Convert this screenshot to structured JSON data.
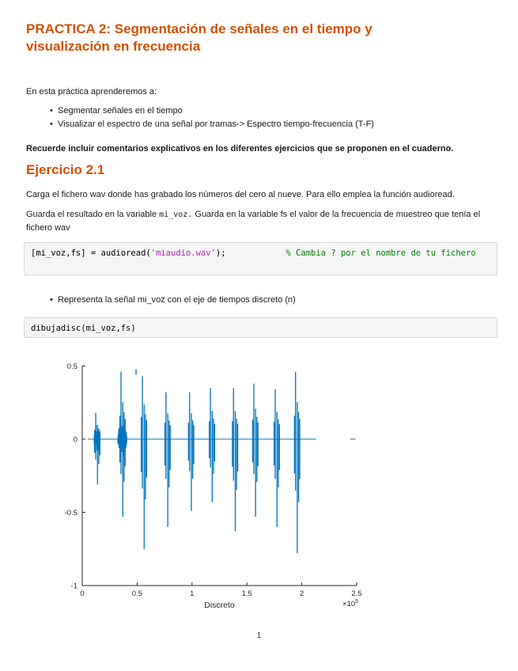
{
  "page": {
    "number": "1"
  },
  "title": {
    "text": "PRACTICA 2: Segmentación de señales en el tiempo y visualización en frecuencia",
    "color": "#D55000"
  },
  "intro": {
    "lead": "En esta práctica aprenderemos a:",
    "bullets": [
      "Segmentar señales en el tiempo",
      "Visualizar el espectro de una señal por tramas-> Espectro tiempo-frecuencia (T-F)"
    ],
    "note": "Recuerde incluir comentarios explicativos en los diferentes ejercicios que se proponen en el cuaderno."
  },
  "exercise": {
    "heading": "Ejercicio 2.1",
    "heading_color": "#D55000",
    "p1": "Carga el fichero wav donde has grabado los números del cero al nueve. Para ello emplea la función audioread.",
    "p2_part1": "Guarda el resultado en la variable ",
    "p2_code": "mi_voz.",
    "p2_part2": "  Guarda en la variable fs el valor de la frecuencia de muestreo que tenía el fichero wav",
    "bullet": "Representa la señal mi_voz con el eje de tiempos discreto (n)"
  },
  "code_block_1": {
    "part1": "[mi_voz,fs] = audioread(",
    "string": "'miaudio.wav'",
    "part2": ");",
    "gap": "            ",
    "comment": "% Cambia ? por el nombre de tu fichero"
  },
  "code_block_2": {
    "code": "dibujadisc(mi_voz,fs)"
  },
  "chart_data": {
    "type": "line",
    "description": "Audio waveform (mi_voz) of ten spoken digits versus discrete sample index n",
    "xlabel": "Discreto",
    "x_multiplier": "×10",
    "x_exponent": "5",
    "xlim": [
      0,
      2.5
    ],
    "ylim": [
      -1,
      0.5
    ],
    "xticks": [
      0,
      0.5,
      1,
      1.5,
      2,
      2.5
    ],
    "xtick_labels": [
      "0",
      "0.5",
      "1",
      "1.5",
      "2",
      "2.5"
    ],
    "yticks": [
      0.5,
      0,
      -0.5,
      -1
    ],
    "ytick_labels": [
      "0.5",
      "0",
      "-0.5",
      "-1"
    ],
    "line_color": "#0072BD",
    "axis_color": "#262626",
    "grid": false,
    "legend": null,
    "baseline": {
      "from": 0.05,
      "to": 2.13
    },
    "end_dash": {
      "from": 2.44,
      "to": 2.49
    },
    "outlier_dash": {
      "x": 0.49,
      "y": 0.475
    },
    "bursts": [
      {
        "x": 0.135,
        "half_width": 0.03,
        "body_amp": 0.1,
        "peak": 0.18,
        "trough": -0.31
      },
      {
        "x": 0.365,
        "half_width": 0.045,
        "body_amp": 0.13,
        "peak": 0.46,
        "trough": -0.53
      },
      {
        "x": 0.56,
        "half_width": 0.045,
        "body_amp": 0.12,
        "peak": 0.43,
        "trough": -0.75
      },
      {
        "x": 0.775,
        "half_width": 0.045,
        "body_amp": 0.11,
        "peak": 0.32,
        "trough": -0.6
      },
      {
        "x": 0.99,
        "half_width": 0.045,
        "body_amp": 0.12,
        "peak": 0.32,
        "trough": -0.49
      },
      {
        "x": 1.18,
        "half_width": 0.045,
        "body_amp": 0.12,
        "peak": 0.35,
        "trough": -0.43
      },
      {
        "x": 1.39,
        "half_width": 0.04,
        "body_amp": 0.12,
        "peak": 0.35,
        "trough": -0.63
      },
      {
        "x": 1.575,
        "half_width": 0.05,
        "body_amp": 0.13,
        "peak": 0.38,
        "trough": -0.53
      },
      {
        "x": 1.77,
        "half_width": 0.045,
        "body_amp": 0.12,
        "peak": 0.34,
        "trough": -0.6
      },
      {
        "x": 1.955,
        "half_width": 0.055,
        "body_amp": 0.15,
        "peak": 0.46,
        "trough": -0.78
      }
    ]
  }
}
